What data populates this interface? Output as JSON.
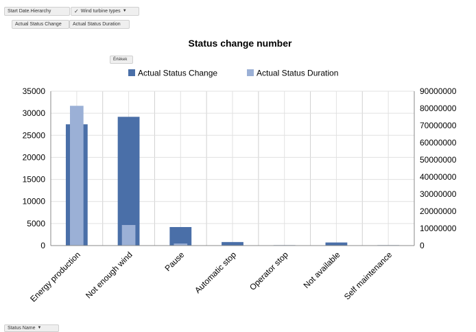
{
  "filters": {
    "start_date_label": "Start Date.Hierarchy",
    "wind_turbine_label": "Wind turbine types",
    "dropdown_arrow": "▼",
    "filter_icon": "funnel-check-icon"
  },
  "value_buttons": {
    "actual_status_change": "Actual Status Change",
    "actual_status_duration": "Actual Status Duration",
    "values_label": "Értékek"
  },
  "axis_field": {
    "status_name_label": "Status Name"
  },
  "chart_data": {
    "type": "bar",
    "title": "Status change number",
    "categories": [
      "Energy production",
      "Not enough wind",
      "Pause",
      "Automatic stop",
      "Operator stop",
      "Not available",
      "Self maintenance"
    ],
    "series": [
      {
        "name": "Actual Status Change",
        "axis": "left",
        "color": "#4a6fa8",
        "values": [
          27500,
          29200,
          4200,
          800,
          100,
          700,
          100
        ]
      },
      {
        "name": "Actual Status Duration",
        "axis": "right",
        "color": "#9bb0d6",
        "values": [
          81500000,
          12000000,
          1200000,
          200000,
          100000,
          100000,
          100000
        ]
      }
    ],
    "y_left": {
      "min": 0,
      "max": 35000,
      "ticks": [
        0,
        5000,
        10000,
        15000,
        20000,
        25000,
        30000,
        35000
      ]
    },
    "y_right": {
      "min": 0,
      "max": 90000000,
      "ticks": [
        0,
        10000000,
        20000000,
        30000000,
        40000000,
        50000000,
        60000000,
        70000000,
        80000000,
        90000000
      ]
    },
    "grid": true,
    "legend_position": "top"
  }
}
